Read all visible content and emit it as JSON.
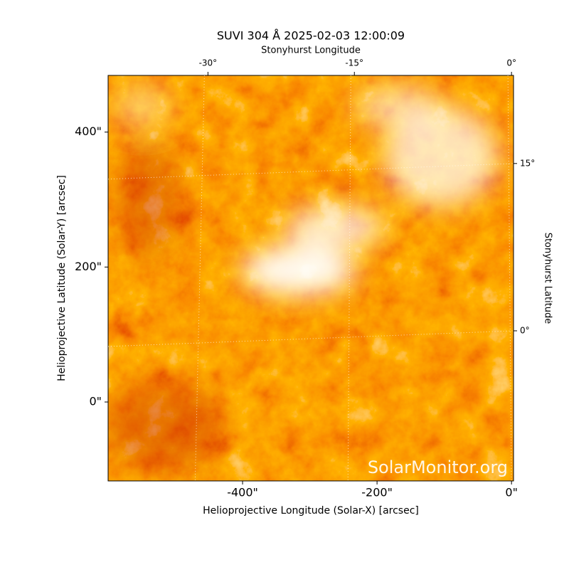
{
  "chart_data": {
    "type": "image",
    "title": "SUVI 304 Å 2025-02-03 12:00:09",
    "xlabel": "Helioprojective Longitude (Solar-X) [arcsec]",
    "ylabel": "Helioprojective Latitude (Solar-Y) [arcsec]",
    "top_label": "Stonyhurst Longitude",
    "right_label": "Stonyhurst Latitude",
    "watermark": "SolarMonitor.org",
    "xlim": [
      -600,
      3
    ],
    "ylim": [
      -117,
      484
    ],
    "xticks": [
      {
        "value": -400,
        "label": "-400\""
      },
      {
        "value": -200,
        "label": "-200\""
      },
      {
        "value": 0,
        "label": "0\""
      }
    ],
    "yticks": [
      {
        "value": 0,
        "label": "0\""
      },
      {
        "value": 200,
        "label": "200\""
      },
      {
        "value": 400,
        "label": "400\""
      }
    ],
    "lon_ticks": [
      {
        "value": -30,
        "label": "-30°"
      },
      {
        "value": -15,
        "label": "-15°"
      },
      {
        "value": 0,
        "label": "0°"
      }
    ],
    "lat_ticks": [
      {
        "value": 0,
        "label": "0°"
      },
      {
        "value": 15,
        "label": "15°"
      }
    ],
    "grid": true
  }
}
